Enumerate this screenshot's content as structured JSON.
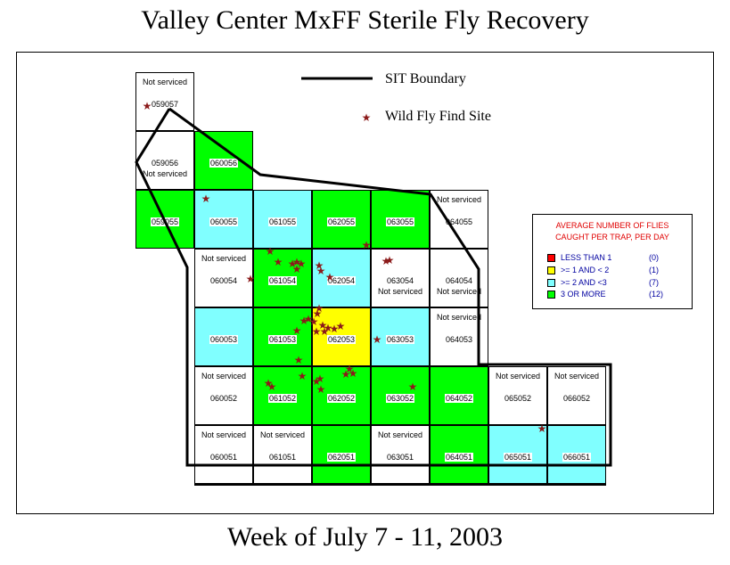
{
  "title": "Valley Center MxFF Sterile Fly Recovery",
  "subtitle": "Week of July 7 - 11, 2003",
  "colors": {
    "red": "#ff0000",
    "yellow": "#ffff00",
    "cyan": "#80ffff",
    "green": "#00ff00",
    "white": "#ffffff",
    "boundary": "#000000",
    "fly_star": "#8b1a1a"
  },
  "map_legend": {
    "boundary_label": "SIT Boundary",
    "fly_label": "Wild Fly Find Site"
  },
  "legend": {
    "header_line1": "AVERAGE NUMBER OF FLIES",
    "header_line2": "CAUGHT PER TRAP, PER DAY",
    "items": [
      {
        "label": "LESS THAN 1",
        "count": "(0)",
        "color": "red"
      },
      {
        "label": ">= 1 AND < 2",
        "count": "(1)",
        "color": "yellow"
      },
      {
        "label": ">= 2 AND <3",
        "count": "(7)",
        "color": "cyan"
      },
      {
        "label": "3 OR MORE",
        "count": "(12)",
        "color": "green"
      }
    ]
  },
  "not_serviced": "Not serviced",
  "cells": [
    {
      "id": "059057",
      "color": "white",
      "not_serviced": true
    },
    {
      "id": "059056",
      "color": "white",
      "not_serviced": true
    },
    {
      "id": "060056",
      "color": "green",
      "not_serviced": false
    },
    {
      "id": "059055",
      "color": "green",
      "not_serviced": false
    },
    {
      "id": "060055",
      "color": "cyan",
      "not_serviced": false
    },
    {
      "id": "061055",
      "color": "cyan",
      "not_serviced": false
    },
    {
      "id": "062055",
      "color": "green",
      "not_serviced": false
    },
    {
      "id": "063055",
      "color": "green",
      "not_serviced": false
    },
    {
      "id": "064055",
      "color": "white",
      "not_serviced": true
    },
    {
      "id": "060054",
      "color": "white",
      "not_serviced": true
    },
    {
      "id": "061054",
      "color": "green",
      "not_serviced": false
    },
    {
      "id": "062054",
      "color": "cyan",
      "not_serviced": false
    },
    {
      "id": "063054",
      "color": "white",
      "not_serviced": true
    },
    {
      "id": "064054",
      "color": "white",
      "not_serviced": true
    },
    {
      "id": "060053",
      "color": "cyan",
      "not_serviced": false
    },
    {
      "id": "061053",
      "color": "green",
      "not_serviced": false
    },
    {
      "id": "062053",
      "color": "yellow",
      "not_serviced": false
    },
    {
      "id": "063053",
      "color": "cyan",
      "not_serviced": false
    },
    {
      "id": "064053",
      "color": "white",
      "not_serviced": true
    },
    {
      "id": "060052",
      "color": "white",
      "not_serviced": true
    },
    {
      "id": "061052",
      "color": "green",
      "not_serviced": false
    },
    {
      "id": "062052",
      "color": "green",
      "not_serviced": false
    },
    {
      "id": "063052",
      "color": "green",
      "not_serviced": false
    },
    {
      "id": "064052",
      "color": "green",
      "not_serviced": false
    },
    {
      "id": "065052",
      "color": "white",
      "not_serviced": true
    },
    {
      "id": "066052",
      "color": "white",
      "not_serviced": true
    },
    {
      "id": "060051",
      "color": "white",
      "not_serviced": true
    },
    {
      "id": "061051",
      "color": "white",
      "not_serviced": true
    },
    {
      "id": "062051",
      "color": "green",
      "not_serviced": false
    },
    {
      "id": "063051",
      "color": "white",
      "not_serviced": true
    },
    {
      "id": "064051",
      "color": "green",
      "not_serviced": false
    },
    {
      "id": "065051",
      "color": "cyan",
      "not_serviced": false
    },
    {
      "id": "066051",
      "color": "cyan",
      "not_serviced": false
    }
  ]
}
